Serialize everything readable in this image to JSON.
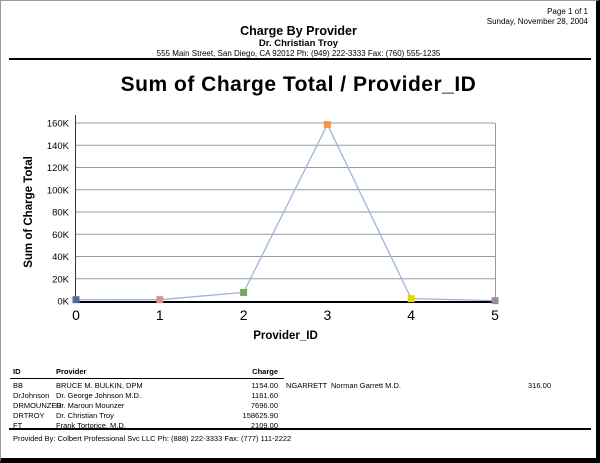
{
  "page": {
    "page_label": "Page 1 of 1",
    "date": "Sunday, November 28, 2004"
  },
  "header": {
    "title": "Charge By Provider",
    "provider": "Dr. Christian Troy",
    "address": "555 Main Street, San Diego, CA 92012 Ph: (949) 222-3333 Fax: (760) 555-1235"
  },
  "chart_data": {
    "type": "line",
    "title": "Sum of Charge Total / Provider_ID",
    "xlabel": "Provider_ID",
    "ylabel": "Sum of Charge Total",
    "x": [
      0,
      1,
      2,
      3,
      4,
      5
    ],
    "xtick_labels": [
      "0",
      "1",
      "2",
      "3",
      "4",
      "5"
    ],
    "values": [
      1154.0,
      1161.6,
      7696.0,
      158625.9,
      2109.0,
      316.0
    ],
    "ylim": [
      0,
      160000
    ],
    "ytick_step": 20000,
    "ytick_labels": [
      "0K",
      "20K",
      "40K",
      "60K",
      "80K",
      "100K",
      "120K",
      "140K",
      "160K"
    ],
    "grid": true,
    "legend": false,
    "line_color": "#9cb6d9",
    "grid_color": "#9b9b9b",
    "axis_color": "#000000",
    "marker_colors": [
      "#4f6e9e",
      "#dd908c",
      "#74a85c",
      "#f79646",
      "#e5d400",
      "#9d8ba6"
    ]
  },
  "table": {
    "headers": [
      "ID",
      "Provider",
      "Charge"
    ],
    "left_rows": [
      [
        "BB",
        "BRUCE M. BULKIN, DPM",
        "1154.00"
      ],
      [
        "DrJohnson",
        "Dr. George Johnson M.D.",
        "1161.60"
      ],
      [
        "DRMOUNZER",
        "Dr. Maroun Mounzer",
        "7696.00"
      ],
      [
        "DRTROY",
        "Dr. Christian Troy",
        "158625.90"
      ],
      [
        "FT",
        "Frank Tortorice, M.D.",
        "2109.00"
      ]
    ],
    "right_rows": [
      [
        "NGARRETT",
        "Norman Garrett M.D.",
        "316.00"
      ]
    ]
  },
  "footer": {
    "text": "Provided By: Colbert Professional Svc LLC Ph: (888) 222-3333 Fax: (777) 111-2222"
  }
}
